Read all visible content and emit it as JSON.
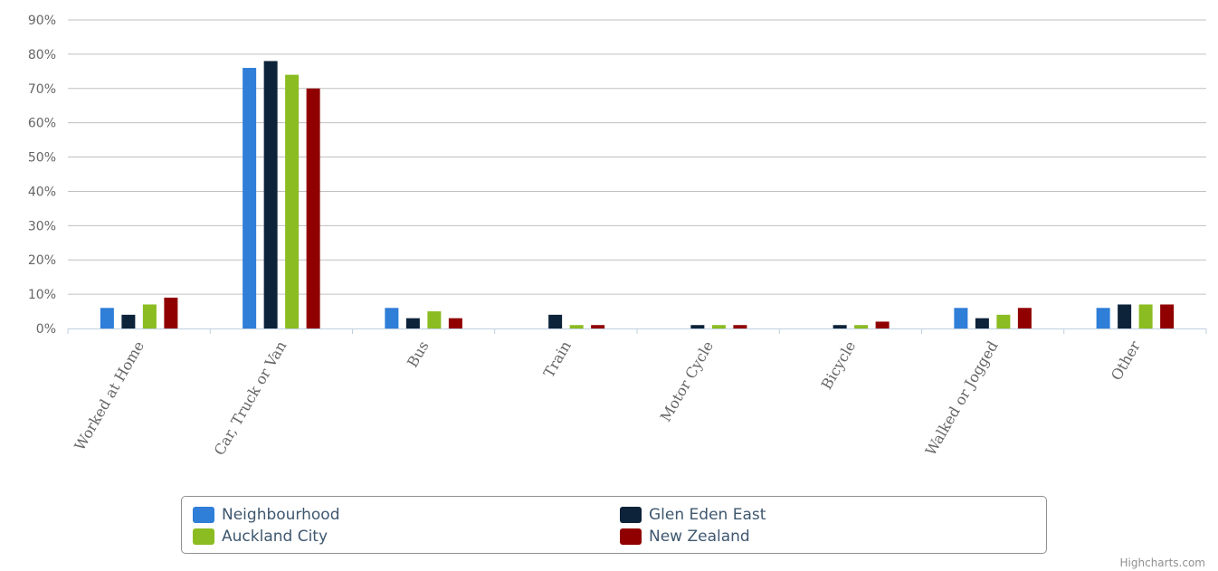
{
  "chart_data": {
    "type": "bar",
    "title": "",
    "xlabel": "",
    "ylabel": "",
    "ylim": [
      0,
      90
    ],
    "y_ticks": [
      "0%",
      "10%",
      "20%",
      "30%",
      "40%",
      "50%",
      "60%",
      "70%",
      "80%",
      "90%"
    ],
    "grid": true,
    "legend_position": "bottom",
    "categories": [
      "Worked at Home",
      "Car, Truck or Van",
      "Bus",
      "Train",
      "Motor Cycle",
      "Bicycle",
      "Walked or Jogged",
      "Other"
    ],
    "series": [
      {
        "name": "Neighbourhood",
        "color": "#2f7ed8",
        "values": [
          6,
          76,
          6,
          0,
          0,
          0,
          6,
          6
        ]
      },
      {
        "name": "Glen Eden East",
        "color": "#0d233a",
        "values": [
          4,
          78,
          3,
          4,
          1,
          1,
          3,
          7
        ]
      },
      {
        "name": "Auckland City",
        "color": "#8bbc21",
        "values": [
          7,
          74,
          5,
          1,
          1,
          1,
          4,
          7
        ]
      },
      {
        "name": "New Zealand",
        "color": "#910000",
        "values": [
          9,
          70,
          3,
          1,
          1,
          2,
          6,
          7
        ]
      }
    ]
  },
  "credits": "Highcharts.com"
}
